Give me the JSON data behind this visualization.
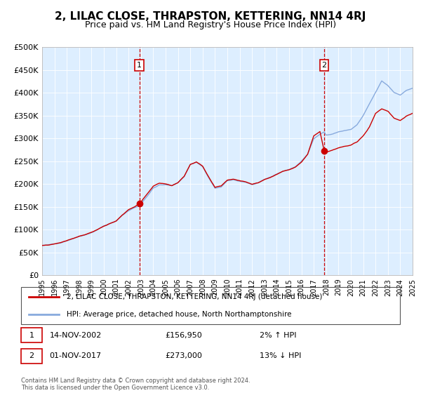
{
  "title": "2, LILAC CLOSE, THRAPSTON, KETTERING, NN14 4RJ",
  "subtitle": "Price paid vs. HM Land Registry's House Price Index (HPI)",
  "title_fontsize": 11,
  "subtitle_fontsize": 9,
  "background_color": "#ffffff",
  "plot_bg_color": "#ddeeff",
  "hpi_line_color": "#88aadd",
  "price_line_color": "#cc0000",
  "marker_color": "#cc0000",
  "vline_color": "#cc0000",
  "ylim": [
    0,
    500000
  ],
  "yticks": [
    0,
    50000,
    100000,
    150000,
    200000,
    250000,
    300000,
    350000,
    400000,
    450000,
    500000
  ],
  "ytick_labels": [
    "£0",
    "£50K",
    "£100K",
    "£150K",
    "£200K",
    "£250K",
    "£300K",
    "£350K",
    "£400K",
    "£450K",
    "£500K"
  ],
  "sale1_date": 2002.87,
  "sale1_price": 156950,
  "sale1_label": "1",
  "sale2_date": 2017.84,
  "sale2_price": 273000,
  "sale2_label": "2",
  "legend_line1": "2, LILAC CLOSE, THRAPSTON, KETTERING, NN14 4RJ (detached house)",
  "legend_line2": "HPI: Average price, detached house, North Northamptonshire",
  "annotation1_date": "14-NOV-2002",
  "annotation1_price": "£156,950",
  "annotation1_hpi": "2% ↑ HPI",
  "annotation2_date": "01-NOV-2017",
  "annotation2_price": "£273,000",
  "annotation2_hpi": "13% ↓ HPI",
  "footnote": "Contains HM Land Registry data © Crown copyright and database right 2024.\nThis data is licensed under the Open Government Licence v3.0.",
  "xstart": 1995,
  "xend": 2025
}
